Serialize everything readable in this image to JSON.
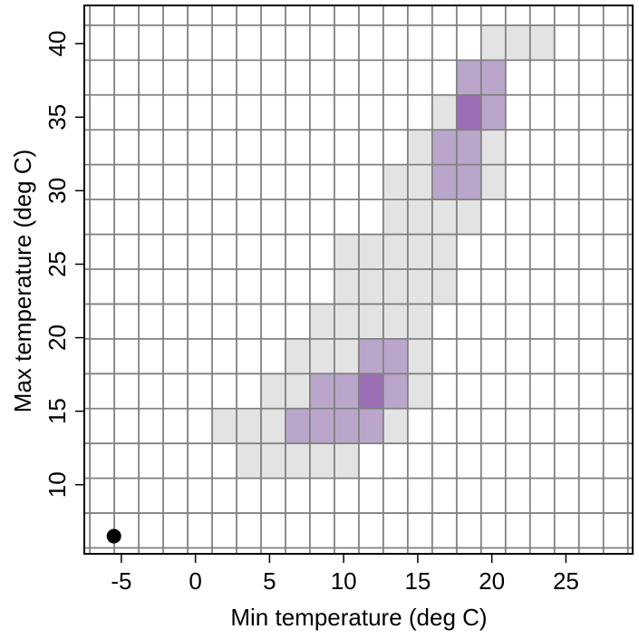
{
  "chart_data": {
    "type": "heatmap",
    "xlabel": "Min temperature (deg C)",
    "ylabel": "Max temperature (deg C)",
    "xlim": [
      -7.5,
      29.5
    ],
    "ylim": [
      5.3,
      42.6
    ],
    "x_ticks": [
      "-5",
      "0",
      "5",
      "10",
      "15",
      "20",
      "25"
    ],
    "x_tick_values": [
      -5,
      0,
      5,
      10,
      15,
      20,
      25
    ],
    "y_ticks": [
      "10",
      "15",
      "20",
      "25",
      "30",
      "35",
      "40"
    ],
    "y_tick_values": [
      10,
      15,
      20,
      25,
      30,
      35,
      40
    ],
    "bin_origin_x": -7.125,
    "bin_width_x": 1.65,
    "bin_origin_y": 5.7,
    "bin_height_y": 2.37,
    "cell_fill_levels": {
      "low": "#e3e3e3",
      "medium": "#bba6cb",
      "high": "#9a6db5"
    },
    "cells": [
      {
        "col": 6,
        "row": 2,
        "level": "low"
      },
      {
        "col": 7,
        "row": 2,
        "level": "low"
      },
      {
        "col": 8,
        "row": 2,
        "level": "low"
      },
      {
        "col": 9,
        "row": 2,
        "level": "low"
      },
      {
        "col": 10,
        "row": 2,
        "level": "low"
      },
      {
        "col": 5,
        "row": 3,
        "level": "low"
      },
      {
        "col": 6,
        "row": 3,
        "level": "low"
      },
      {
        "col": 7,
        "row": 3,
        "level": "low"
      },
      {
        "col": 8,
        "row": 3,
        "level": "medium"
      },
      {
        "col": 9,
        "row": 3,
        "level": "medium"
      },
      {
        "col": 10,
        "row": 3,
        "level": "medium"
      },
      {
        "col": 11,
        "row": 3,
        "level": "medium"
      },
      {
        "col": 12,
        "row": 3,
        "level": "low"
      },
      {
        "col": 7,
        "row": 4,
        "level": "low"
      },
      {
        "col": 8,
        "row": 4,
        "level": "low"
      },
      {
        "col": 9,
        "row": 4,
        "level": "medium"
      },
      {
        "col": 10,
        "row": 4,
        "level": "medium"
      },
      {
        "col": 11,
        "row": 4,
        "level": "high"
      },
      {
        "col": 12,
        "row": 4,
        "level": "medium"
      },
      {
        "col": 13,
        "row": 4,
        "level": "low"
      },
      {
        "col": 8,
        "row": 5,
        "level": "low"
      },
      {
        "col": 9,
        "row": 5,
        "level": "low"
      },
      {
        "col": 10,
        "row": 5,
        "level": "low"
      },
      {
        "col": 11,
        "row": 5,
        "level": "medium"
      },
      {
        "col": 12,
        "row": 5,
        "level": "medium"
      },
      {
        "col": 13,
        "row": 5,
        "level": "low"
      },
      {
        "col": 9,
        "row": 6,
        "level": "low"
      },
      {
        "col": 10,
        "row": 6,
        "level": "low"
      },
      {
        "col": 11,
        "row": 6,
        "level": "low"
      },
      {
        "col": 12,
        "row": 6,
        "level": "low"
      },
      {
        "col": 13,
        "row": 6,
        "level": "low"
      },
      {
        "col": 10,
        "row": 7,
        "level": "low"
      },
      {
        "col": 11,
        "row": 7,
        "level": "low"
      },
      {
        "col": 12,
        "row": 7,
        "level": "low"
      },
      {
        "col": 13,
        "row": 7,
        "level": "low"
      },
      {
        "col": 14,
        "row": 7,
        "level": "low"
      },
      {
        "col": 10,
        "row": 8,
        "level": "low"
      },
      {
        "col": 11,
        "row": 8,
        "level": "low"
      },
      {
        "col": 12,
        "row": 8,
        "level": "low"
      },
      {
        "col": 13,
        "row": 8,
        "level": "low"
      },
      {
        "col": 14,
        "row": 8,
        "level": "low"
      },
      {
        "col": 12,
        "row": 9,
        "level": "low"
      },
      {
        "col": 13,
        "row": 9,
        "level": "low"
      },
      {
        "col": 14,
        "row": 9,
        "level": "low"
      },
      {
        "col": 15,
        "row": 9,
        "level": "low"
      },
      {
        "col": 12,
        "row": 10,
        "level": "low"
      },
      {
        "col": 13,
        "row": 10,
        "level": "low"
      },
      {
        "col": 14,
        "row": 10,
        "level": "medium"
      },
      {
        "col": 15,
        "row": 10,
        "level": "medium"
      },
      {
        "col": 16,
        "row": 10,
        "level": "low"
      },
      {
        "col": 13,
        "row": 11,
        "level": "low"
      },
      {
        "col": 14,
        "row": 11,
        "level": "medium"
      },
      {
        "col": 15,
        "row": 11,
        "level": "medium"
      },
      {
        "col": 16,
        "row": 11,
        "level": "low"
      },
      {
        "col": 14,
        "row": 12,
        "level": "low"
      },
      {
        "col": 15,
        "row": 12,
        "level": "high"
      },
      {
        "col": 16,
        "row": 12,
        "level": "medium"
      },
      {
        "col": 15,
        "row": 13,
        "level": "medium"
      },
      {
        "col": 16,
        "row": 13,
        "level": "medium"
      },
      {
        "col": 16,
        "row": 14,
        "level": "low"
      },
      {
        "col": 17,
        "row": 14,
        "level": "low"
      },
      {
        "col": 18,
        "row": 14,
        "level": "low"
      }
    ],
    "points": [
      {
        "x": -5.5,
        "y": 6.5
      }
    ],
    "grid": true
  }
}
